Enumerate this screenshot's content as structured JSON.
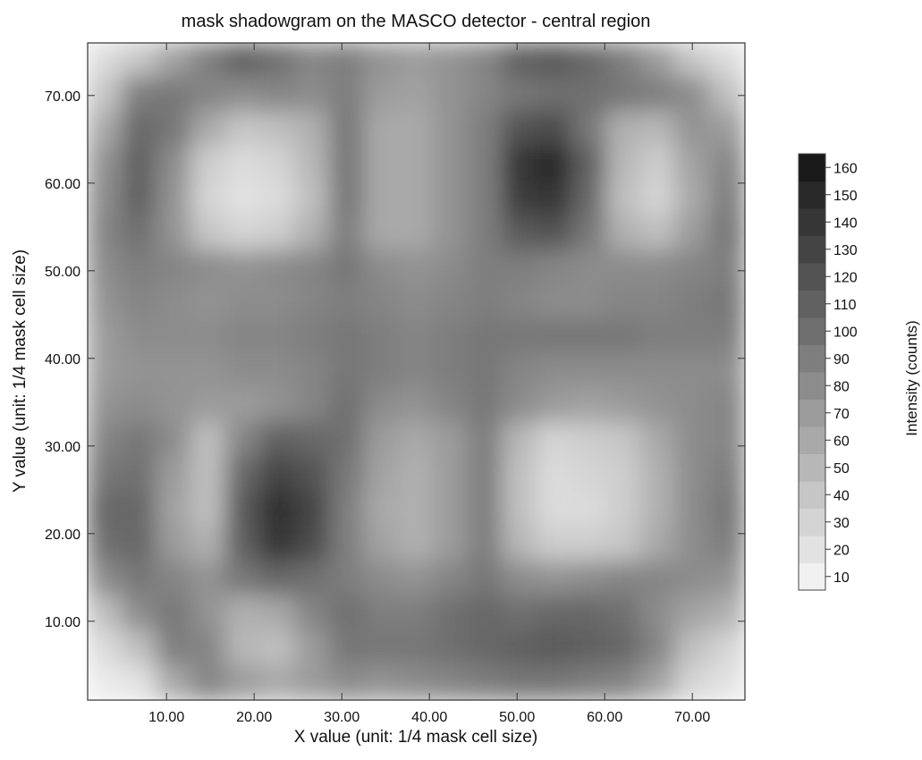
{
  "chart_data": {
    "type": "heatmap",
    "title": "mask shadowgram on the MASCO detector - central region",
    "xlabel": "X value (unit: 1/4 mask cell size)",
    "ylabel": "Y value (unit: 1/4 mask cell size)",
    "colorbar_label": "Intensity (counts)",
    "xlim": [
      1,
      76
    ],
    "ylim": [
      1,
      76
    ],
    "x_ticks": [
      "10.00",
      "20.00",
      "30.00",
      "40.00",
      "50.00",
      "60.00",
      "70.00"
    ],
    "x_tick_values": [
      10,
      20,
      30,
      40,
      50,
      60,
      70
    ],
    "y_ticks": [
      "10.00",
      "20.00",
      "30.00",
      "40.00",
      "50.00",
      "60.00",
      "70.00"
    ],
    "y_tick_values": [
      10,
      20,
      30,
      40,
      50,
      60,
      70
    ],
    "colorbar_ticks": [
      "10",
      "20",
      "30",
      "40",
      "50",
      "60",
      "70",
      "80",
      "90",
      "100",
      "110",
      "120",
      "130",
      "140",
      "150",
      "160"
    ],
    "colorbar_tick_values": [
      10,
      20,
      30,
      40,
      50,
      60,
      70,
      80,
      90,
      100,
      110,
      120,
      130,
      140,
      150,
      160
    ],
    "colorbar_range": [
      5,
      165
    ],
    "colormap": "grayscale (light = low, dark = high)",
    "grid": false,
    "colorbar_placement": "right",
    "grid_size": [
      19,
      19
    ],
    "z": [
      [
        25,
        40,
        65,
        90,
        110,
        100,
        85,
        90,
        75,
        70,
        75,
        85,
        110,
        115,
        105,
        90,
        70,
        40,
        25
      ],
      [
        40,
        90,
        95,
        85,
        80,
        85,
        80,
        90,
        70,
        65,
        75,
        85,
        95,
        100,
        100,
        95,
        90,
        80,
        45
      ],
      [
        60,
        105,
        95,
        60,
        40,
        45,
        55,
        95,
        60,
        60,
        75,
        90,
        120,
        125,
        95,
        55,
        50,
        75,
        70
      ],
      [
        75,
        110,
        80,
        35,
        25,
        30,
        50,
        95,
        60,
        60,
        75,
        90,
        140,
        150,
        110,
        50,
        35,
        65,
        85
      ],
      [
        80,
        110,
        75,
        30,
        20,
        25,
        45,
        95,
        60,
        60,
        75,
        90,
        135,
        140,
        105,
        45,
        30,
        60,
        90
      ],
      [
        85,
        100,
        75,
        40,
        30,
        35,
        55,
        90,
        60,
        60,
        75,
        90,
        115,
        120,
        95,
        55,
        45,
        70,
        95
      ],
      [
        80,
        90,
        85,
        80,
        75,
        80,
        85,
        95,
        80,
        75,
        80,
        90,
        90,
        85,
        80,
        80,
        80,
        85,
        90
      ],
      [
        75,
        85,
        80,
        75,
        80,
        80,
        85,
        90,
        85,
        80,
        85,
        90,
        85,
        80,
        80,
        85,
        85,
        90,
        95
      ],
      [
        70,
        80,
        80,
        80,
        85,
        85,
        90,
        95,
        90,
        85,
        90,
        95,
        95,
        95,
        95,
        95,
        90,
        90,
        90
      ],
      [
        70,
        75,
        75,
        75,
        80,
        80,
        85,
        95,
        90,
        85,
        90,
        95,
        85,
        80,
        80,
        80,
        80,
        80,
        80
      ],
      [
        75,
        80,
        75,
        70,
        70,
        75,
        85,
        100,
        80,
        75,
        85,
        95,
        80,
        70,
        65,
        70,
        75,
        80,
        85
      ],
      [
        85,
        95,
        80,
        45,
        85,
        110,
        105,
        100,
        70,
        60,
        70,
        90,
        50,
        30,
        35,
        40,
        60,
        80,
        85
      ],
      [
        95,
        100,
        70,
        45,
        105,
        130,
        120,
        95,
        65,
        55,
        70,
        90,
        45,
        25,
        30,
        35,
        55,
        80,
        90
      ],
      [
        105,
        105,
        65,
        45,
        115,
        145,
        130,
        90,
        60,
        55,
        70,
        90,
        45,
        25,
        25,
        35,
        55,
        80,
        95
      ],
      [
        100,
        105,
        70,
        55,
        110,
        140,
        125,
        90,
        65,
        55,
        70,
        90,
        50,
        35,
        35,
        40,
        60,
        80,
        90
      ],
      [
        80,
        95,
        85,
        75,
        95,
        105,
        100,
        90,
        80,
        75,
        85,
        95,
        80,
        75,
        80,
        85,
        85,
        80,
        75
      ],
      [
        45,
        80,
        95,
        75,
        55,
        60,
        85,
        100,
        90,
        90,
        100,
        105,
        100,
        105,
        105,
        100,
        80,
        65,
        55
      ],
      [
        25,
        45,
        90,
        85,
        50,
        45,
        70,
        95,
        95,
        95,
        100,
        105,
        110,
        115,
        110,
        105,
        85,
        45,
        30
      ],
      [
        15,
        20,
        60,
        85,
        70,
        60,
        70,
        80,
        75,
        80,
        85,
        90,
        95,
        95,
        90,
        85,
        65,
        30,
        20
      ]
    ]
  }
}
